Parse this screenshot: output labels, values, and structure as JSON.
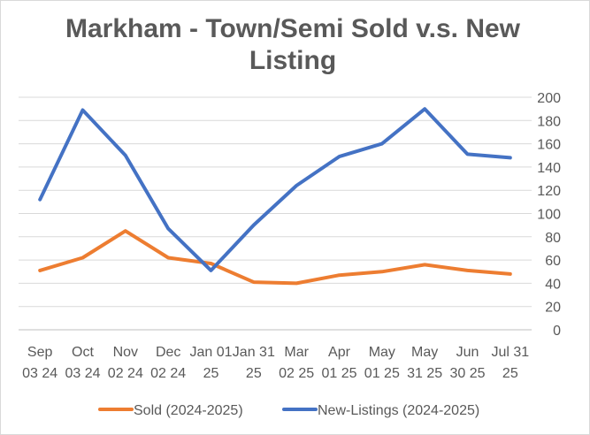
{
  "chart_data": {
    "type": "line",
    "title": "Markham - Town/Semi Sold v.s. New Listing",
    "xlabel": "",
    "ylabel": "",
    "categories": [
      [
        "Sep",
        "03 24"
      ],
      [
        "Oct",
        "03 24"
      ],
      [
        "Nov",
        "02 24"
      ],
      [
        "Dec",
        "02 24"
      ],
      [
        "Jan 01",
        "25"
      ],
      [
        "Jan 31",
        "25"
      ],
      [
        "Mar",
        "02 25"
      ],
      [
        "Apr",
        "01 25"
      ],
      [
        "May",
        "01 25"
      ],
      [
        "May",
        "31 25"
      ],
      [
        "Jun",
        "30 25"
      ],
      [
        "Jul 31",
        "25"
      ]
    ],
    "ylim": [
      0,
      200
    ],
    "yticks": [
      0,
      20,
      40,
      60,
      80,
      100,
      120,
      140,
      160,
      180,
      200
    ],
    "y_axis_side": "right",
    "grid": true,
    "legend_position": "bottom",
    "series": [
      {
        "name": "Sold (2024-2025)",
        "color": "#ED7D31",
        "values": [
          51,
          62,
          85,
          62,
          57,
          41,
          40,
          47,
          50,
          56,
          51,
          48
        ]
      },
      {
        "name": "New-Listings (2024-2025)",
        "color": "#4472C4",
        "values": [
          112,
          189,
          150,
          87,
          51,
          90,
          124,
          149,
          160,
          190,
          151,
          148
        ]
      }
    ]
  }
}
